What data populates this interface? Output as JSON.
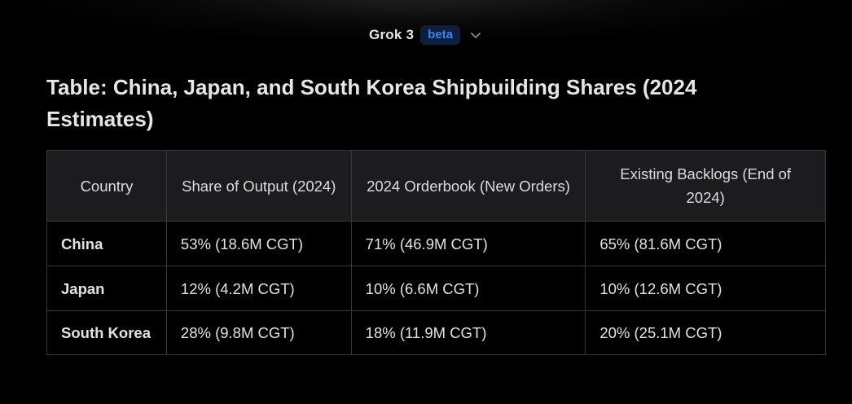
{
  "header": {
    "model_name": "Grok 3",
    "badge": "beta"
  },
  "title": "Table: China, Japan, and South Korea Shipbuilding Shares (2024 Estimates)",
  "table": {
    "columns": [
      "Country",
      "Share of Output (2024)",
      "2024 Orderbook (New Orders)",
      "Existing Backlogs (End of 2024)"
    ],
    "rows": [
      [
        "China",
        "53% (18.6M CGT)",
        "71% (46.9M CGT)",
        "65% (81.6M CGT)"
      ],
      [
        "Japan",
        "12% (4.2M CGT)",
        "10% (6.6M CGT)",
        "10% (12.6M CGT)"
      ],
      [
        "South Korea",
        "28% (9.8M CGT)",
        "18% (11.9M CGT)",
        "20% (25.1M CGT)"
      ]
    ]
  },
  "colors": {
    "background": "#000000",
    "header_row": "#1c1c1e",
    "accent": "#3b82f6",
    "border": "#3a3a3a"
  },
  "icons": {
    "model_dropdown": "chevron-down-icon"
  }
}
